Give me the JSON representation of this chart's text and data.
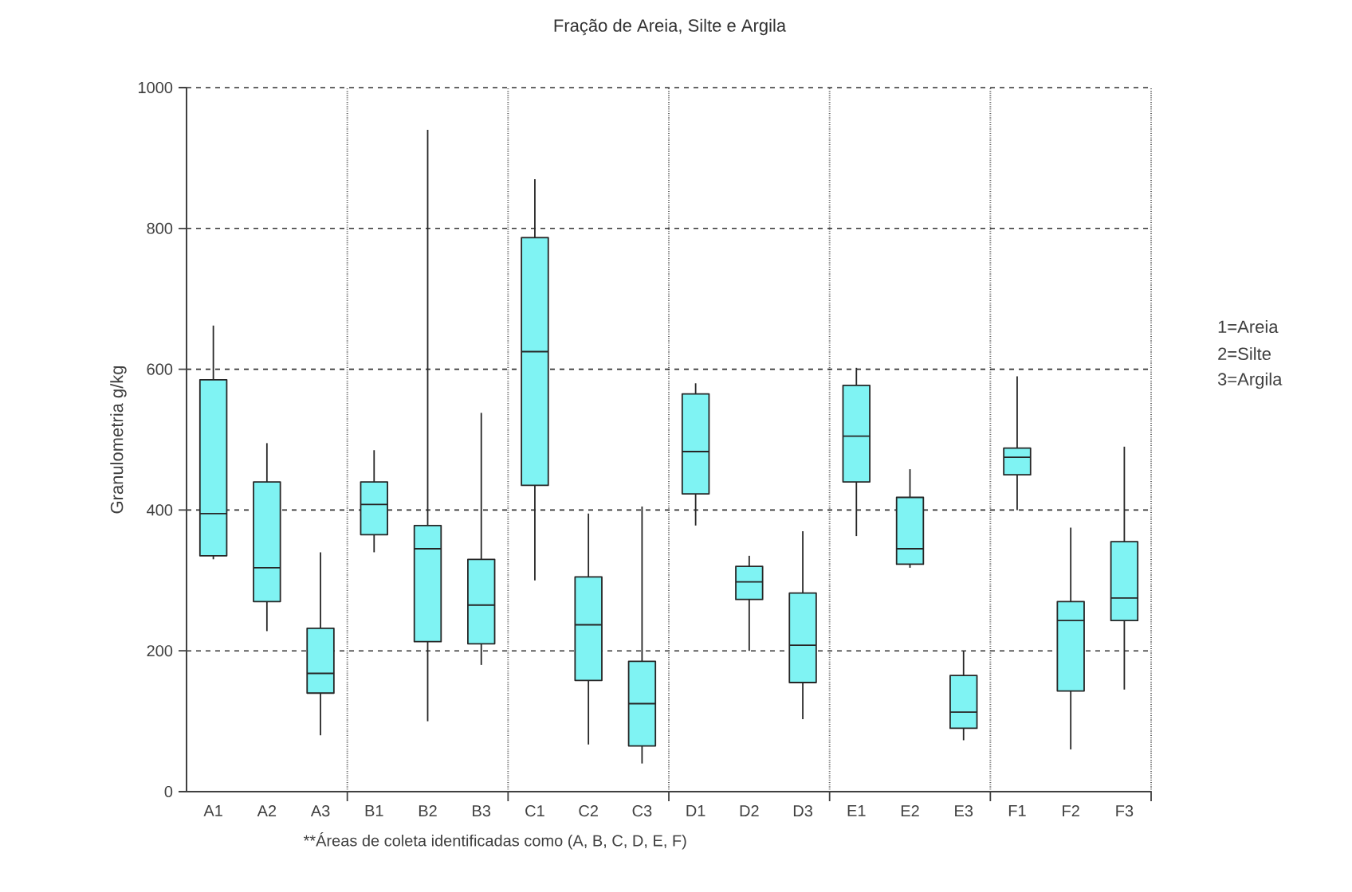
{
  "chart_data": {
    "type": "box",
    "title": "Fração de Areia, Silte e Argila",
    "xlabel": "**Áreas de coleta identificadas como (A, B, C, D, E, F)",
    "ylabel": "Granulometria g/kg",
    "annotations": [
      "1=Areia",
      "2=Silte",
      "3=Argila"
    ],
    "categories": [
      "A1",
      "A2",
      "A3",
      "B1",
      "B2",
      "B3",
      "C1",
      "C2",
      "C3",
      "D1",
      "D2",
      "D3",
      "E1",
      "E2",
      "E3",
      "F1",
      "F2",
      "F3"
    ],
    "color": "#7ff3f3",
    "boxes": [
      {
        "low": 330,
        "q1": 335,
        "median": 395,
        "q3": 585,
        "high": 662
      },
      {
        "low": 228,
        "q1": 270,
        "median": 318,
        "q3": 440,
        "high": 495
      },
      {
        "low": 80,
        "q1": 140,
        "median": 168,
        "q3": 232,
        "high": 340
      },
      {
        "low": 340,
        "q1": 365,
        "median": 408,
        "q3": 440,
        "high": 485
      },
      {
        "low": 100,
        "q1": 213,
        "median": 345,
        "q3": 378,
        "high": 940
      },
      {
        "low": 180,
        "q1": 210,
        "median": 265,
        "q3": 330,
        "high": 538
      },
      {
        "low": 300,
        "q1": 435,
        "median": 625,
        "q3": 787,
        "high": 870
      },
      {
        "low": 67,
        "q1": 158,
        "median": 237,
        "q3": 305,
        "high": 395
      },
      {
        "low": 40,
        "q1": 65,
        "median": 125,
        "q3": 185,
        "high": 405
      },
      {
        "low": 378,
        "q1": 423,
        "median": 483,
        "q3": 565,
        "high": 580
      },
      {
        "low": 200,
        "q1": 273,
        "median": 298,
        "q3": 320,
        "high": 335
      },
      {
        "low": 103,
        "q1": 155,
        "median": 208,
        "q3": 282,
        "high": 370
      },
      {
        "low": 363,
        "q1": 440,
        "median": 505,
        "q3": 577,
        "high": 602
      },
      {
        "low": 318,
        "q1": 323,
        "median": 345,
        "q3": 418,
        "high": 458
      },
      {
        "low": 73,
        "q1": 90,
        "median": 113,
        "q3": 165,
        "high": 200
      },
      {
        "low": 400,
        "q1": 450,
        "median": 475,
        "q3": 488,
        "high": 590
      },
      {
        "low": 60,
        "q1": 143,
        "median": 243,
        "q3": 270,
        "high": 375
      },
      {
        "low": 145,
        "q1": 243,
        "median": 275,
        "q3": 355,
        "high": 490
      }
    ],
    "ylim": [
      0,
      1000
    ],
    "yticks": [
      0,
      200,
      400,
      600,
      800,
      1000
    ],
    "grid": true
  }
}
